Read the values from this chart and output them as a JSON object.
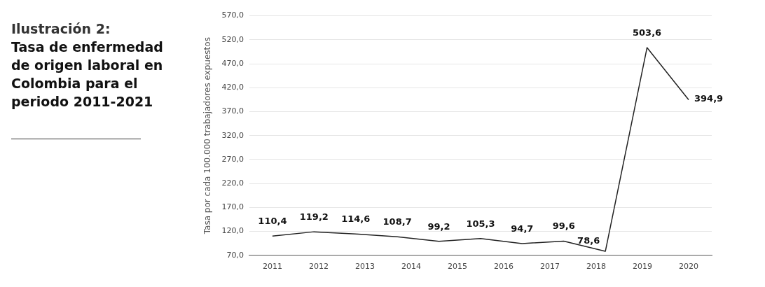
{
  "chart_data": {
    "type": "line",
    "title": "Ilustración 2:",
    "subtitle": "Tasa de enfermedad de origen laboral en Colombia para el periodo 2011-2021",
    "ylabel": "Tasa por cada 100.000 trabajadores expuestos",
    "x": [
      2011,
      2011.9,
      2012.8,
      2013.7,
      2014.6,
      2015.5,
      2016.4,
      2017.3,
      2018.2,
      2019.1,
      2020
    ],
    "series": [
      {
        "color": "#222222",
        "values": [
          110.4,
          119.2,
          114.6,
          108.7,
          99.2,
          105.3,
          94.7,
          99.6,
          78.6,
          503.6,
          394.9
        ],
        "value_labels": [
          "110,4",
          "119,2",
          "114,6",
          "108,7",
          "99,2",
          "105,3",
          "94,7",
          "99,6",
          "78,6",
          "503,6",
          "394,9"
        ]
      }
    ],
    "xlim": [
      2010.5,
      2020.5
    ],
    "xticks": [
      2011,
      2012,
      2013,
      2014,
      2015,
      2016,
      2017,
      2018,
      2019,
      2020
    ],
    "ylim": [
      70,
      570
    ],
    "yticks": [
      {
        "value": 70,
        "label": "70,0"
      },
      {
        "value": 120,
        "label": "120,0"
      },
      {
        "value": 170,
        "label": "170,0"
      },
      {
        "value": 220,
        "label": "220,0"
      },
      {
        "value": 270,
        "label": "270,0"
      },
      {
        "value": 320,
        "label": "320,0"
      },
      {
        "value": 370,
        "label": "370,0"
      },
      {
        "value": 420,
        "label": "420,0"
      },
      {
        "value": 470,
        "label": "470,0"
      },
      {
        "value": 520,
        "label": "520,0"
      },
      {
        "value": 570,
        "label": "570,0"
      }
    ],
    "grid": "y",
    "legend": false,
    "marker": "none",
    "line_style": "solid"
  }
}
